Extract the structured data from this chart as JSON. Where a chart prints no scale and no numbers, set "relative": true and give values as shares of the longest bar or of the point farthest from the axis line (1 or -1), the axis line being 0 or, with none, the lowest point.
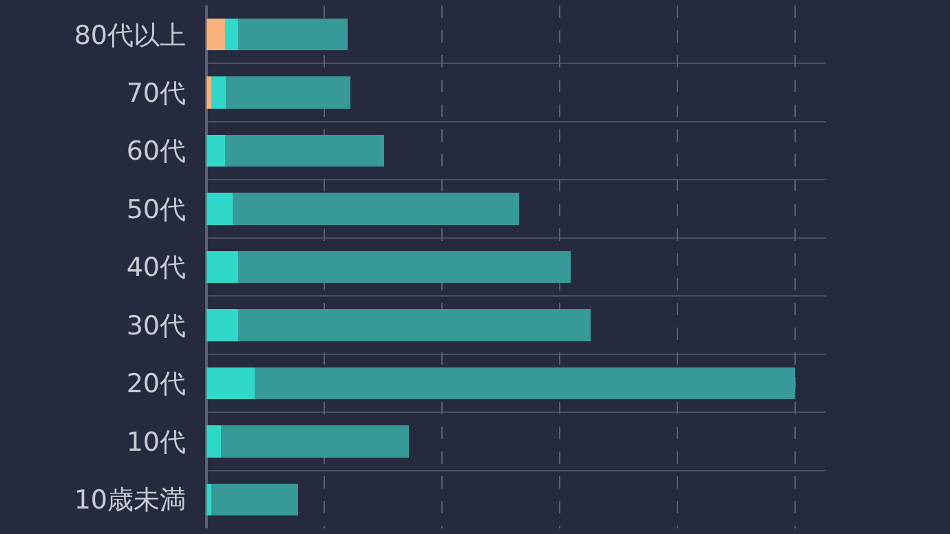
{
  "chart_data": {
    "type": "bar",
    "orientation": "horizontal",
    "stacked": true,
    "relative": true,
    "grid": true,
    "categories": [
      "80代以上",
      "70代",
      "60代",
      "50代",
      "40代",
      "30代",
      "20代",
      "10代",
      "10歳未満"
    ],
    "series": [
      {
        "color": "#f8b27c",
        "values": [
          0.031,
          0.008,
          null,
          null,
          null,
          null,
          null,
          null,
          null
        ]
      },
      {
        "color": "#2fd8c8",
        "values": [
          0.023,
          0.025,
          0.031,
          0.045,
          0.054,
          0.054,
          0.082,
          0.025,
          0.008
        ]
      },
      {
        "color": "#379a98",
        "values": [
          0.186,
          0.212,
          0.271,
          0.486,
          0.565,
          0.599,
          0.918,
          0.319,
          0.147
        ]
      }
    ]
  }
}
